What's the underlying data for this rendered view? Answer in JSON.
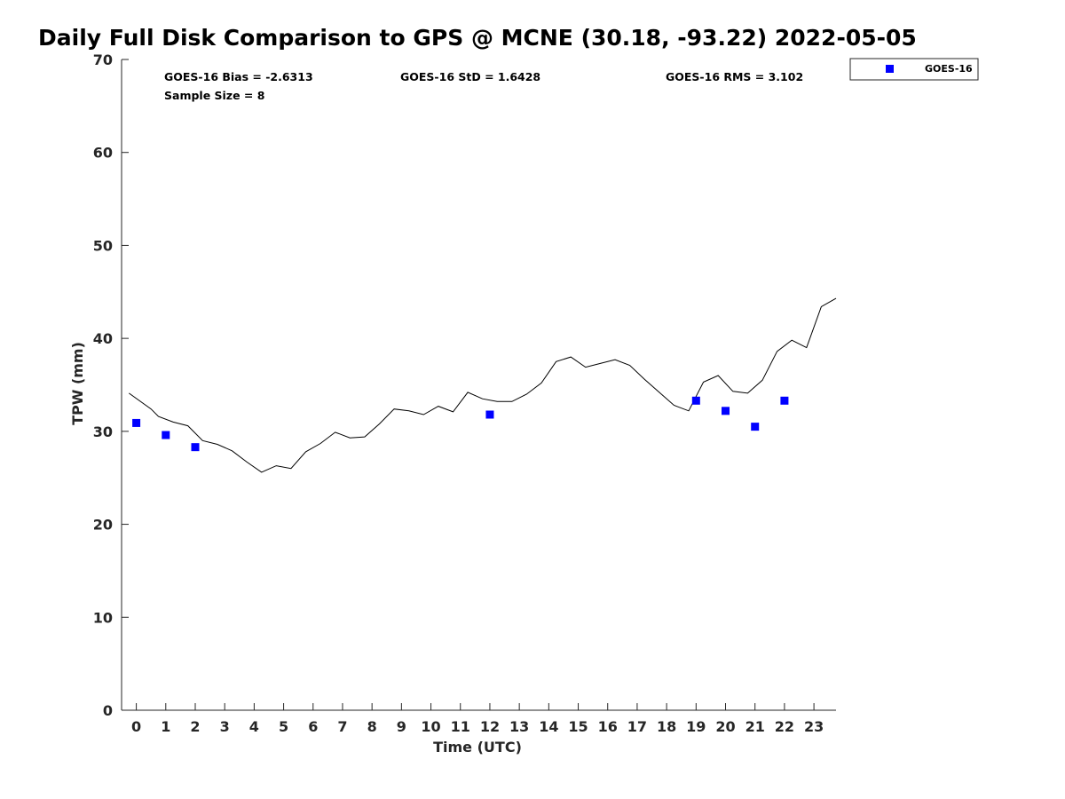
{
  "title": "Daily Full Disk Comparison to GPS @ MCNE (30.18, -93.22) 2022-05-05",
  "stats": {
    "bias": "GOES-16 Bias = -2.6313",
    "std": "GOES-16 StD = 1.6428",
    "rms": "GOES-16 RMS = 3.102",
    "sample": "Sample Size = 8"
  },
  "legend": {
    "label": "GOES-16",
    "color": "#0000ff"
  },
  "chart_data": {
    "type": "scatter",
    "xlabel": "Time (UTC)",
    "ylabel": "TPW (mm)",
    "xlim": [
      -0.5,
      23.75
    ],
    "ylim": [
      0,
      70
    ],
    "x_ticks": [
      "0",
      "1",
      "2",
      "3",
      "4",
      "5",
      "6",
      "7",
      "8",
      "9",
      "10",
      "11",
      "12",
      "13",
      "14",
      "15",
      "16",
      "17",
      "18",
      "19",
      "20",
      "21",
      "22",
      "23"
    ],
    "y_ticks": [
      "0",
      "10",
      "20",
      "30",
      "40",
      "50",
      "60",
      "70"
    ],
    "grid": false,
    "legend_position": "top-right (outside)",
    "series": [
      {
        "name": "GOES-16",
        "type": "scatter",
        "marker": "square",
        "color": "#0000ff",
        "x": [
          0,
          1,
          2,
          19,
          20,
          21,
          22,
          12
        ],
        "y": [
          30.9,
          29.6,
          28.3,
          33.3,
          32.2,
          30.5,
          33.3,
          31.8
        ]
      },
      {
        "type": "line",
        "color": "#000000",
        "x": [
          -0.25,
          0.5,
          0.75,
          1.25,
          1.75,
          2.25,
          2.75,
          3.25,
          3.75,
          4.25,
          4.75,
          5.25,
          5.75,
          6.25,
          6.75,
          7.25,
          7.75,
          8.25,
          8.75,
          9.25,
          9.75,
          10.25,
          10.75,
          11.25,
          11.75,
          12.25,
          12.75,
          13.25,
          13.75,
          14.25,
          14.75,
          15.25,
          15.75,
          16.25,
          16.75,
          17.25,
          17.75,
          18.25,
          18.75,
          19.25,
          19.75,
          20.25,
          20.75,
          21.25,
          21.75,
          22.25,
          22.75,
          23.25,
          23.75
        ],
        "y": [
          34.1,
          32.4,
          31.6,
          31.0,
          30.6,
          29.0,
          28.6,
          27.9,
          26.7,
          25.6,
          26.3,
          26.0,
          27.8,
          28.7,
          29.9,
          29.3,
          29.4,
          30.8,
          32.4,
          32.2,
          31.8,
          32.7,
          32.1,
          34.2,
          33.5,
          33.2,
          33.2,
          34.0,
          35.2,
          37.5,
          38.0,
          36.9,
          37.3,
          37.7,
          37.1,
          35.6,
          34.2,
          32.8,
          32.2,
          35.3,
          36.0,
          34.3,
          34.1,
          35.5,
          38.6,
          39.8,
          39.0,
          43.4,
          44.3
        ]
      }
    ]
  }
}
